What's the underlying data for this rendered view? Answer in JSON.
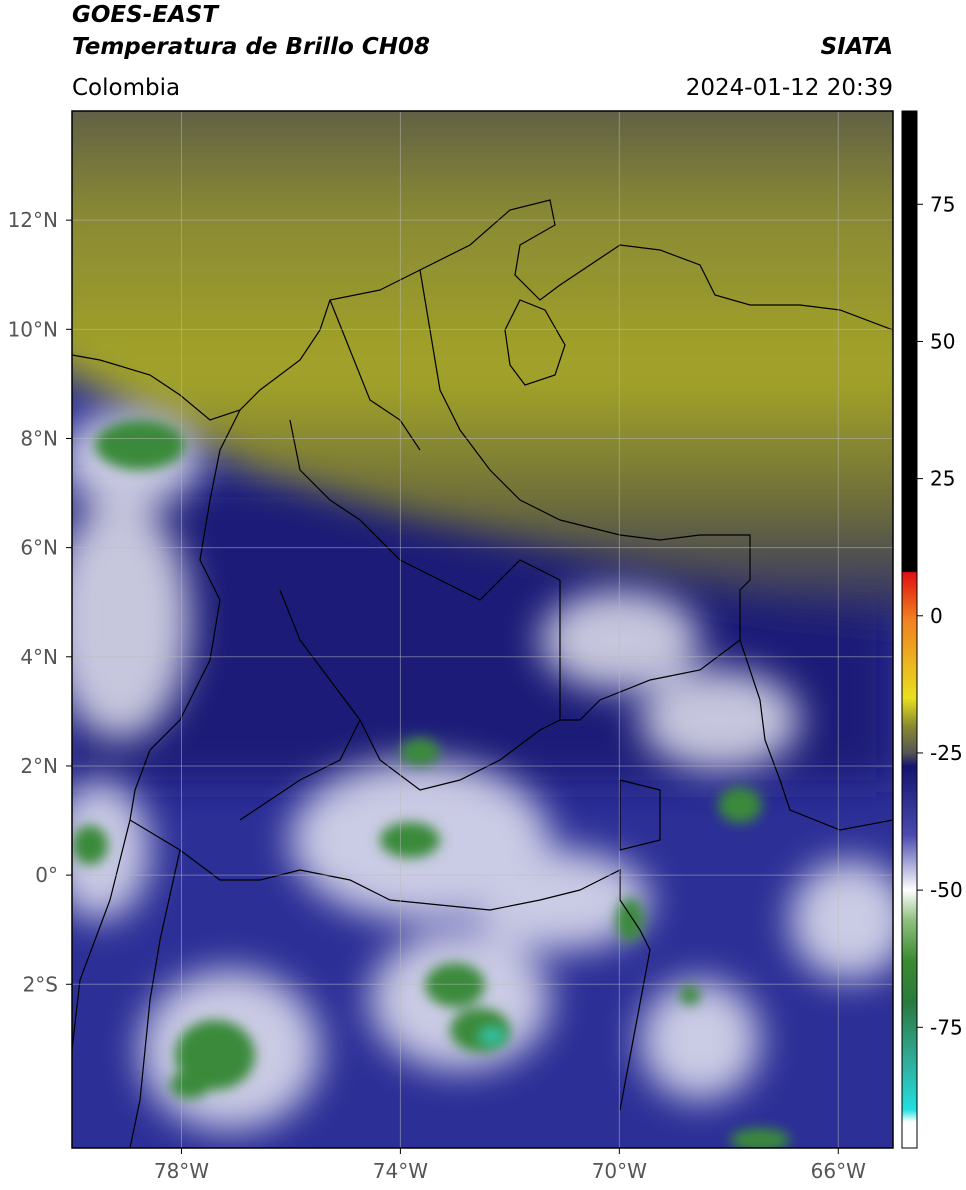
{
  "header": {
    "satellite": "GOES-EAST",
    "product": "Temperatura de Brillo CH08",
    "region": "Colombia",
    "source": "SIATA",
    "datetime": "2024-01-12 20:39"
  },
  "map": {
    "xlim": [
      -80,
      -65
    ],
    "ylim": [
      -5,
      14
    ],
    "xticks": [
      {
        "value": -78,
        "label": "78°W"
      },
      {
        "value": -74,
        "label": "74°W"
      },
      {
        "value": -70,
        "label": "70°W"
      },
      {
        "value": -66,
        "label": "66°W"
      }
    ],
    "yticks": [
      {
        "value": 12,
        "label": "12°N"
      },
      {
        "value": 10,
        "label": "10°N"
      },
      {
        "value": 8,
        "label": "8°N"
      },
      {
        "value": 6,
        "label": "6°N"
      },
      {
        "value": 4,
        "label": "4°N"
      },
      {
        "value": 2,
        "label": "2°N"
      },
      {
        "value": 0,
        "label": "0°"
      },
      {
        "value": -2,
        "label": "2°S"
      }
    ],
    "grid": true
  },
  "colorbar": {
    "lim": [
      -97,
      92
    ],
    "ticks": [
      75,
      50,
      25,
      0,
      -25,
      -50,
      -75
    ]
  }
}
